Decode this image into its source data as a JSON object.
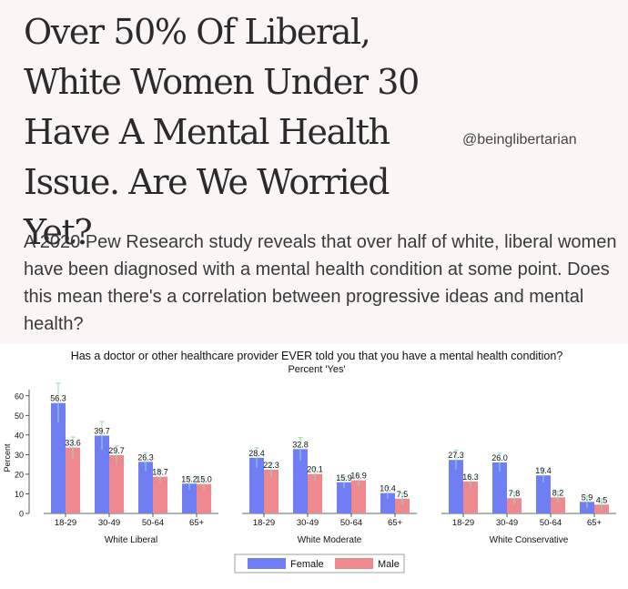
{
  "article": {
    "headline": "Over 50% Of Liberal, White Women Under 30 Have A Mental Health Issue. Are We Worried Yet?",
    "handle": "@beinglibertarian",
    "dek": "A 2020 Pew Research study reveals that over half of white, liberal women have been diagnosed with a mental health condition at some point. Does this mean there's a correlation between progressive ideas and mental health?"
  },
  "chart_data": {
    "type": "bar",
    "title": "Has a doctor or other healthcare provider EVER told you that you have a mental health condition?",
    "subtitle": "Percent 'Yes'",
    "ylabel": "Percent",
    "ylim": [
      0,
      65
    ],
    "yticks": [
      0,
      10,
      20,
      30,
      40,
      50,
      60
    ],
    "grid": false,
    "legend_position": "bottom-center",
    "colors": {
      "Female": "#6f7ef2",
      "Male": "#ee8a8e",
      "error": "#8fdcc0"
    },
    "groups": [
      {
        "name": "White Liberal",
        "categories": [
          "18-29",
          "30-49",
          "50-64",
          "65+"
        ],
        "female": [
          56.3,
          39.7,
          26.3,
          15.2
        ],
        "male": [
          33.6,
          29.7,
          18.7,
          15.0
        ],
        "female_labels": [
          "56.3",
          "39.7",
          "26.3",
          "15.2"
        ],
        "male_labels": [
          "33.6",
          "29.7",
          "18.7",
          "15.0"
        ]
      },
      {
        "name": "White Moderate",
        "categories": [
          "18-29",
          "30-49",
          "50-64",
          "65+"
        ],
        "female": [
          28.4,
          32.8,
          15.9,
          10.4
        ],
        "male": [
          22.3,
          20.1,
          16.9,
          7.5
        ],
        "female_labels": [
          "28.4",
          "32.8",
          "15.9",
          "10.4"
        ],
        "male_labels": [
          "22.3",
          "20.1",
          "16.9",
          "7.5"
        ]
      },
      {
        "name": "White Conservative",
        "categories": [
          "18-29",
          "30-49",
          "50-64",
          "65+"
        ],
        "female": [
          27.3,
          26.0,
          19.4,
          5.9
        ],
        "male": [
          16.3,
          7.8,
          8.2,
          4.5
        ],
        "female_labels": [
          "27.3",
          "26.0",
          "19.4",
          "5.9"
        ],
        "male_labels": [
          "16.3",
          "7.8",
          "8.2",
          "4.5"
        ]
      }
    ],
    "legend": [
      "Female",
      "Male"
    ]
  }
}
